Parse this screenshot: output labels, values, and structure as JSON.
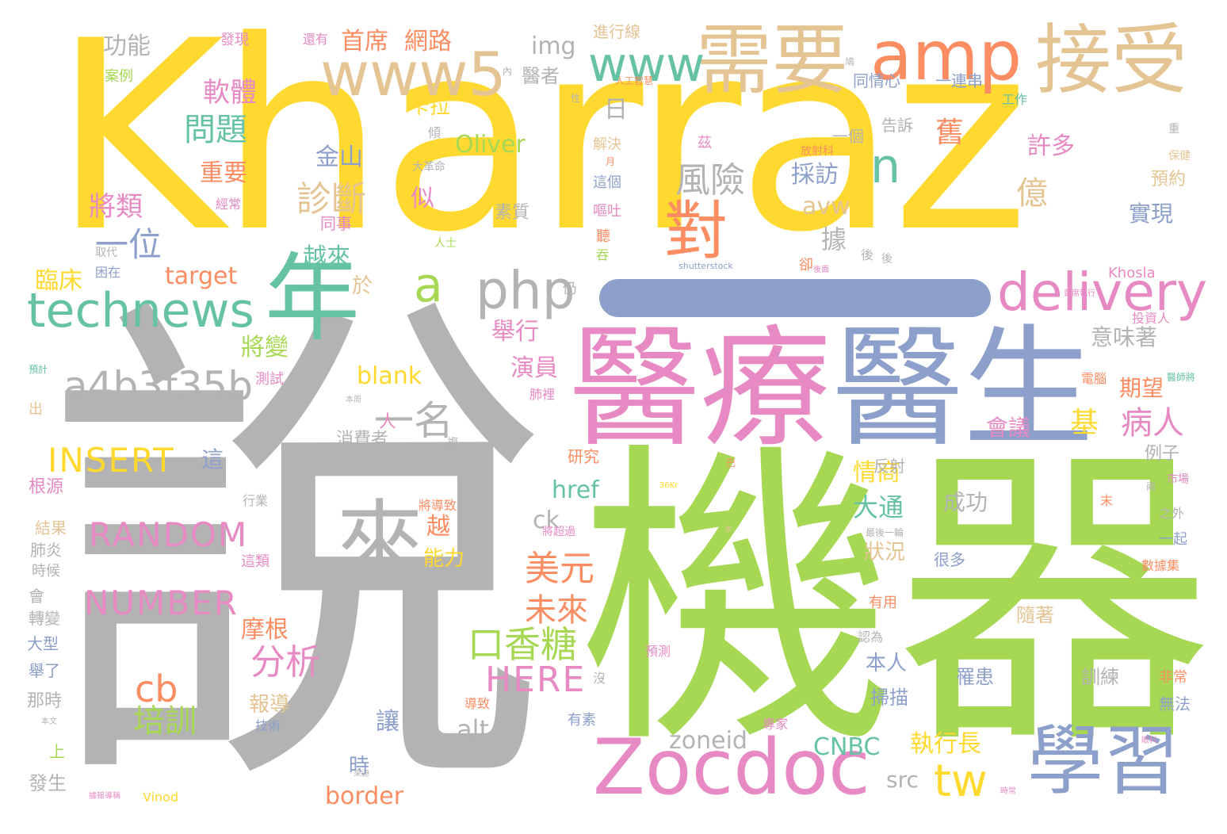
{
  "palette": {
    "yellow": "#ffd92f",
    "green": "#a6d854",
    "grey": "#b3b3b3",
    "pink": "#e78ac3",
    "blue": "#8da0cb",
    "orange": "#fc8d62",
    "teal": "#66c2a5",
    "tan": "#e5c494"
  },
  "words": [
    "Kharraz",
    "說",
    "機器",
    "醫療",
    "醫生",
    "Zocdoc",
    "學習",
    "amp",
    "接受",
    "需要",
    "www5",
    "www",
    "年",
    "technews",
    "來",
    "a4b3f35b",
    "delivery",
    "php",
    "a",
    "n",
    "對",
    "診斷",
    "風險",
    "一名",
    "INSERT",
    "RANDOM",
    "NUMBER",
    "HERE",
    "口香糖",
    "tw",
    "cb",
    "培訓",
    "分析",
    "美元",
    "未來",
    "首席",
    "網路",
    "功能",
    "軟體",
    "問題",
    "重要",
    "將類",
    "一位",
    "臨床",
    "target",
    "越來",
    "將變",
    "blank",
    "金山",
    "Oliver",
    "img",
    "醫者",
    "日",
    "卡拉",
    "avw",
    "據",
    "採訪",
    "億",
    "許多",
    "實現",
    "病人",
    "期望",
    "會議",
    "基",
    "意味著",
    "舉行",
    "演員",
    "情商",
    "大通",
    "href",
    "ck",
    "成功",
    "狀況",
    "越",
    "能力",
    "摩根",
    "報導",
    "讓",
    "alt",
    "zoneid",
    "CNBC",
    "執行長",
    "src",
    "border",
    "時",
    "本人",
    "掃描",
    "罹患",
    "訓練",
    "隨著",
    "一連串",
    "同情心",
    "工作",
    "一個",
    "告訴",
    "舊",
    "進行線",
    "發現",
    "還有",
    "案例",
    "解決",
    "這個",
    "嘔吐",
    "聽",
    "吞",
    "素質",
    "同事",
    "經常",
    "取代",
    "困在",
    "於",
    "似",
    "仍",
    "人",
    "測試",
    "消費者",
    "這",
    "上",
    "發生",
    "那時",
    "舉了",
    "大型",
    "轉變",
    "會",
    "時候",
    "肺炎",
    "結果",
    "根源",
    "出",
    "預計",
    "行業",
    "這類",
    "研究",
    "反射",
    "例子",
    "市場",
    "之外",
    "一起",
    "數據集",
    "有用",
    "認為",
    "預測",
    "很多",
    "非常",
    "無法",
    "專家",
    "技術",
    "導致",
    "有素",
    "沒",
    "將導致",
    "將超過",
    "最後一輪",
    "肺裡",
    "複",
    "Khosla",
    "投資人",
    "電腦",
    "醫師將",
    "保健",
    "預約",
    "重",
    "放射科",
    "後",
    "卻",
    "人士",
    "大革命",
    "傾",
    "月",
    "性",
    "茲",
    "內",
    "鳩",
    "人工智慧",
    "shutterstock",
    "本文",
    "Vinod",
    "時常",
    "後面",
    "兩",
    "末",
    "巴",
    "36Kr",
    "據報導稱",
    "本周",
    "未",
    "眼科",
    "來源",
    "首席執行",
    "後"
  ]
}
